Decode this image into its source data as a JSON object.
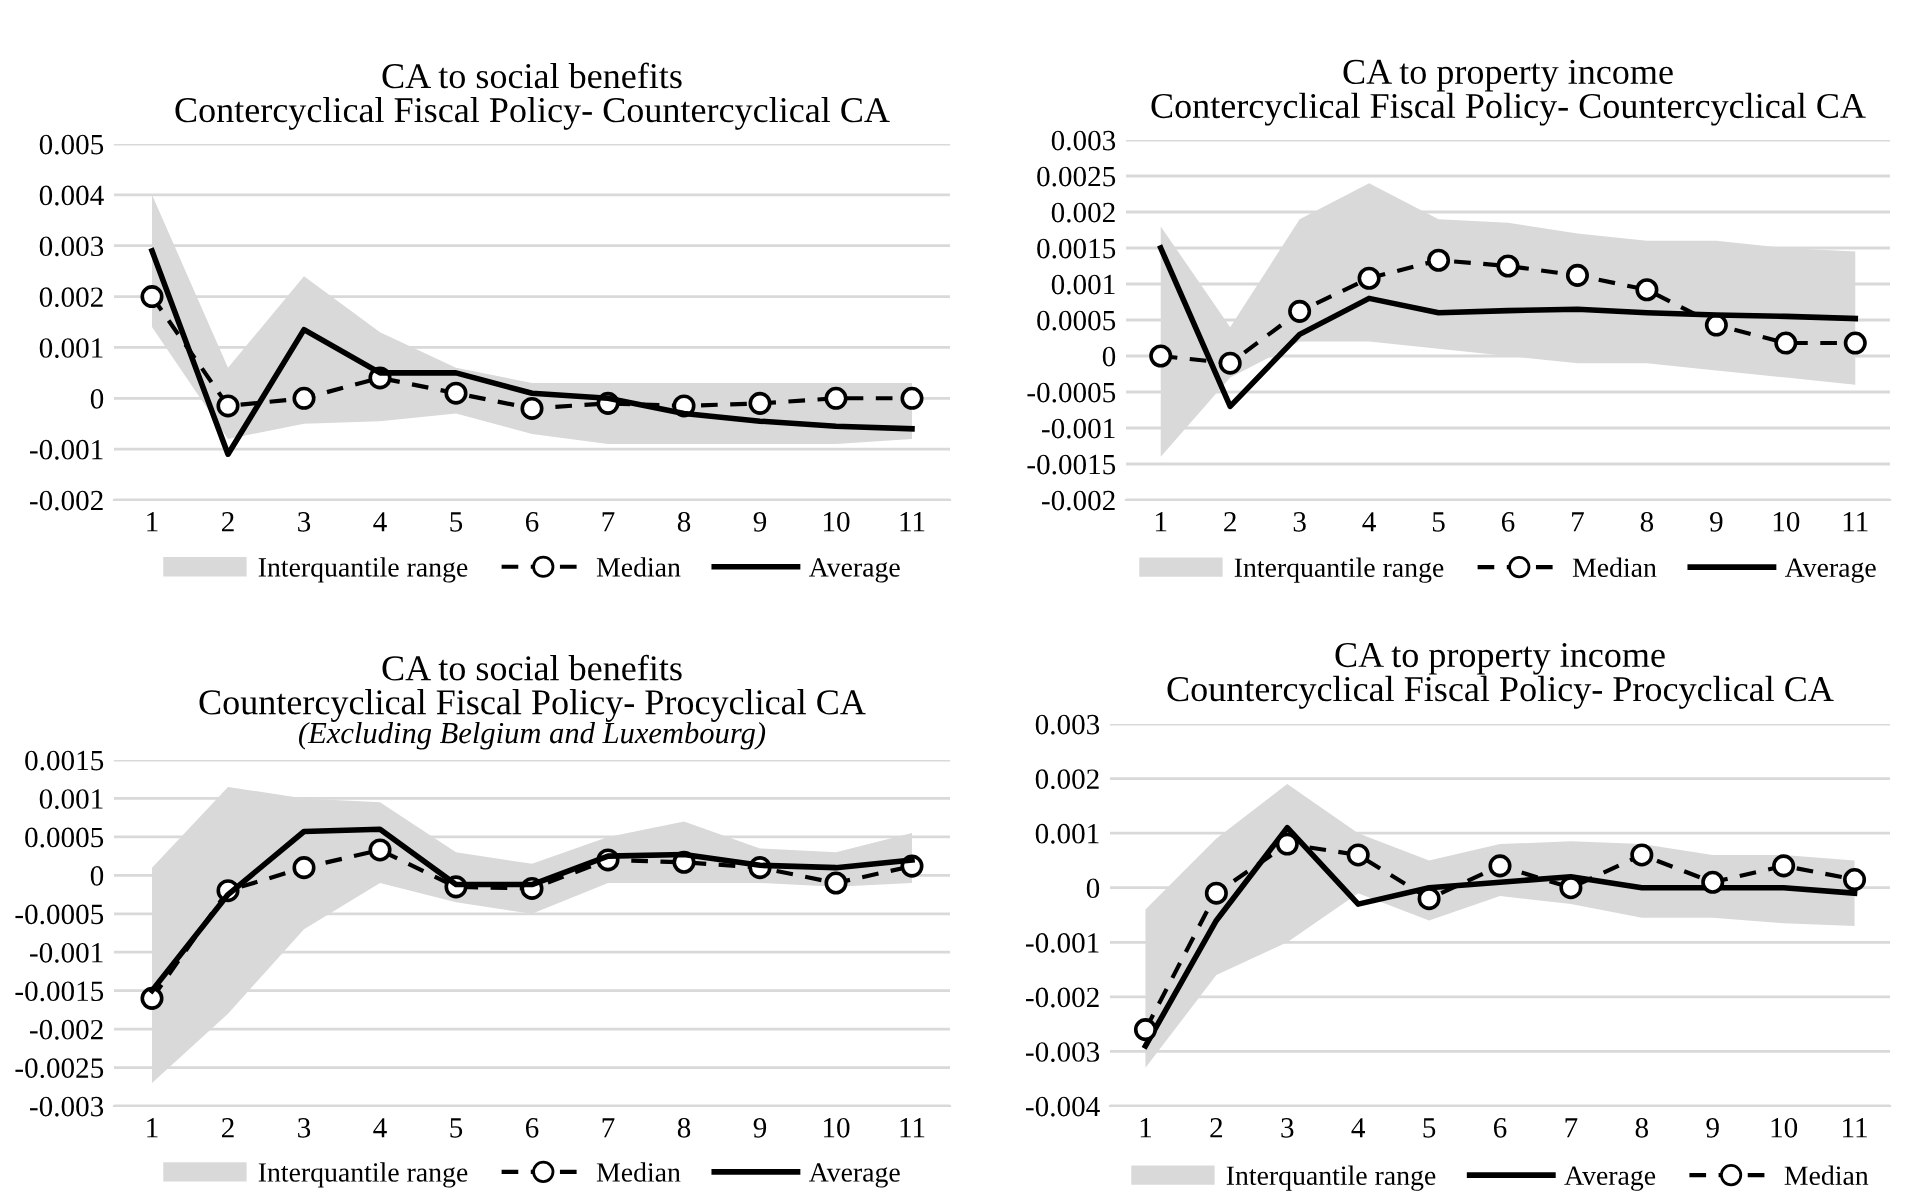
{
  "chart_data": [
    {
      "type": "line",
      "title": "CA to social benefits\nContercyclical Fiscal Policy- Countercyclical CA",
      "categories": [
        "1",
        "2",
        "3",
        "4",
        "5",
        "6",
        "7",
        "8",
        "9",
        "10",
        "11"
      ],
      "ylim": [
        -0.002,
        0.005
      ],
      "yticks": [
        -0.002,
        -0.001,
        0,
        0.001,
        0.002,
        0.003,
        0.004,
        0.005
      ],
      "grid": "y",
      "legend": "bottom",
      "series": [
        {
          "name": "Interquantile range",
          "type": "area",
          "color": "#d9d9d9",
          "values": [
            null,
            null,
            null,
            null,
            null,
            null,
            null,
            null,
            null,
            null,
            null
          ],
          "lower": [
            0.0014,
            -0.0008,
            -0.0005,
            -0.00045,
            -0.0003,
            -0.0007,
            -0.0009,
            -0.0009,
            -0.0009,
            -0.0009,
            -0.0008
          ],
          "upper": [
            0.004,
            0.0006,
            0.0024,
            0.0013,
            0.0006,
            0.0003,
            0.0003,
            0.0003,
            0.0003,
            0.0003,
            0.0003
          ]
        },
        {
          "name": "Median",
          "type": "line",
          "color": "#000000",
          "marker": "circle",
          "line_style": "dashed",
          "values": [
            0.002,
            -0.00015,
            0.0,
            0.0004,
            0.0001,
            -0.0002,
            -0.0001,
            -0.00015,
            -0.0001,
            0.0,
            0.0
          ]
        },
        {
          "name": "Average",
          "type": "line",
          "color": "#000000",
          "line_style": "solid",
          "values": [
            0.0029,
            -0.0011,
            0.00135,
            0.0005,
            0.0005,
            0.0001,
            0.0,
            -0.0003,
            -0.00045,
            -0.00055,
            -0.0006
          ]
        }
      ]
    },
    {
      "type": "line",
      "title": "CA to property income\nContercyclical Fiscal Policy- Countercyclical CA",
      "categories": [
        "1",
        "2",
        "3",
        "4",
        "5",
        "6",
        "7",
        "8",
        "9",
        "10",
        "11"
      ],
      "ylim": [
        -0.002,
        0.003
      ],
      "yticks": [
        -0.002,
        -0.0015,
        -0.001,
        -0.0005,
        0,
        0.0005,
        0.001,
        0.0015,
        0.002,
        0.0025,
        0.003
      ],
      "grid": "y",
      "legend": "bottom",
      "series": [
        {
          "name": "Interquantile range",
          "type": "area",
          "color": "#d9d9d9",
          "values": [
            null,
            null,
            null,
            null,
            null,
            null,
            null,
            null,
            null,
            null,
            null
          ],
          "lower": [
            -0.0014,
            -0.0003,
            0.0002,
            0.0002,
            0.0001,
            0.0,
            -0.0001,
            -0.0001,
            -0.0002,
            -0.0003,
            -0.0004
          ],
          "upper": [
            0.0018,
            0.0004,
            0.0019,
            0.0024,
            0.0019,
            0.00185,
            0.0017,
            0.0016,
            0.0016,
            0.0015,
            0.00145
          ]
        },
        {
          "name": "Median",
          "type": "line",
          "color": "#000000",
          "marker": "circle",
          "line_style": "dashed",
          "values": [
            0.0,
            -0.0001,
            0.00062,
            0.00108,
            0.00133,
            0.00125,
            0.00112,
            0.00092,
            0.00043,
            0.00018,
            0.00018
          ]
        },
        {
          "name": "Average",
          "type": "line",
          "color": "#000000",
          "line_style": "solid",
          "values": [
            0.0015,
            -0.0007,
            0.0003,
            0.0008,
            0.0006,
            0.00063,
            0.00065,
            0.0006,
            0.00057,
            0.00055,
            0.00052
          ]
        }
      ]
    },
    {
      "type": "line",
      "title": "CA to social benefits\nCountercyclical Fiscal Policy- Procyclical CA",
      "subtitle": "(Excluding Belgium and Luxembourg)",
      "categories": [
        "1",
        "2",
        "3",
        "4",
        "5",
        "6",
        "7",
        "8",
        "9",
        "10",
        "11"
      ],
      "ylim": [
        -0.003,
        0.0015
      ],
      "yticks": [
        -0.003,
        -0.0025,
        -0.002,
        -0.0015,
        -0.001,
        -0.0005,
        0,
        0.0005,
        0.001,
        0.0015
      ],
      "grid": "y",
      "legend": "bottom",
      "series": [
        {
          "name": "Interquantile range",
          "type": "area",
          "color": "#d9d9d9",
          "values": [
            null,
            null,
            null,
            null,
            null,
            null,
            null,
            null,
            null,
            null,
            null
          ],
          "lower": [
            -0.0027,
            -0.0018,
            -0.0007,
            -0.0001,
            -0.00035,
            -0.0005,
            -0.0001,
            -0.0001,
            -0.0001,
            -0.00015,
            -0.0001
          ],
          "upper": [
            0.0001,
            0.00115,
            0.001,
            0.00095,
            0.0003,
            0.00015,
            0.0005,
            0.0007,
            0.00035,
            0.0003,
            0.00055
          ]
        },
        {
          "name": "Median",
          "type": "line",
          "color": "#000000",
          "marker": "circle",
          "line_style": "dashed",
          "values": [
            -0.0016,
            -0.0002,
            0.0001,
            0.00033,
            -0.00015,
            -0.00017,
            0.0002,
            0.00017,
            0.0001,
            -0.0001,
            0.00012
          ]
        },
        {
          "name": "Average",
          "type": "line",
          "color": "#000000",
          "line_style": "solid",
          "values": [
            -0.0015,
            -0.00025,
            0.00057,
            0.0006,
            -0.00012,
            -0.00012,
            0.00025,
            0.00027,
            0.00013,
            0.0001,
            0.0002
          ]
        }
      ]
    },
    {
      "type": "line",
      "title": "CA to property income\nCountercyclical Fiscal Policy- Procyclical CA",
      "categories": [
        "1",
        "2",
        "3",
        "4",
        "5",
        "6",
        "7",
        "8",
        "9",
        "10",
        "11"
      ],
      "ylim": [
        -0.004,
        0.003
      ],
      "yticks": [
        -0.004,
        -0.003,
        -0.002,
        -0.001,
        0,
        0.001,
        0.002,
        0.003
      ],
      "grid": "y",
      "legend": "bottom",
      "series": [
        {
          "name": "Interquantile range",
          "type": "area",
          "color": "#d9d9d9",
          "values": [
            null,
            null,
            null,
            null,
            null,
            null,
            null,
            null,
            null,
            null,
            null
          ],
          "lower": [
            -0.0033,
            -0.0016,
            -0.001,
            -0.0001,
            -0.0006,
            -0.00015,
            -0.0003,
            -0.00055,
            -0.00055,
            -0.00065,
            -0.0007
          ],
          "upper": [
            -0.0004,
            0.0009,
            0.0019,
            0.001,
            0.0005,
            0.0008,
            0.00085,
            0.0008,
            0.0006,
            0.0006,
            0.0005
          ]
        },
        {
          "name": "Average",
          "type": "line",
          "color": "#000000",
          "line_style": "solid",
          "values": [
            -0.0029,
            -0.0006,
            0.0011,
            -0.0003,
            0.0,
            0.0001,
            0.0002,
            0.0,
            0.0,
            0.0,
            -0.0001
          ]
        },
        {
          "name": "Median",
          "type": "line",
          "color": "#000000",
          "marker": "circle",
          "line_style": "dashed",
          "values": [
            -0.0026,
            -0.0001,
            0.0008,
            0.0006,
            -0.0002,
            0.0004,
            0.0,
            0.0006,
            0.0001,
            0.0004,
            0.00015
          ]
        }
      ]
    }
  ]
}
